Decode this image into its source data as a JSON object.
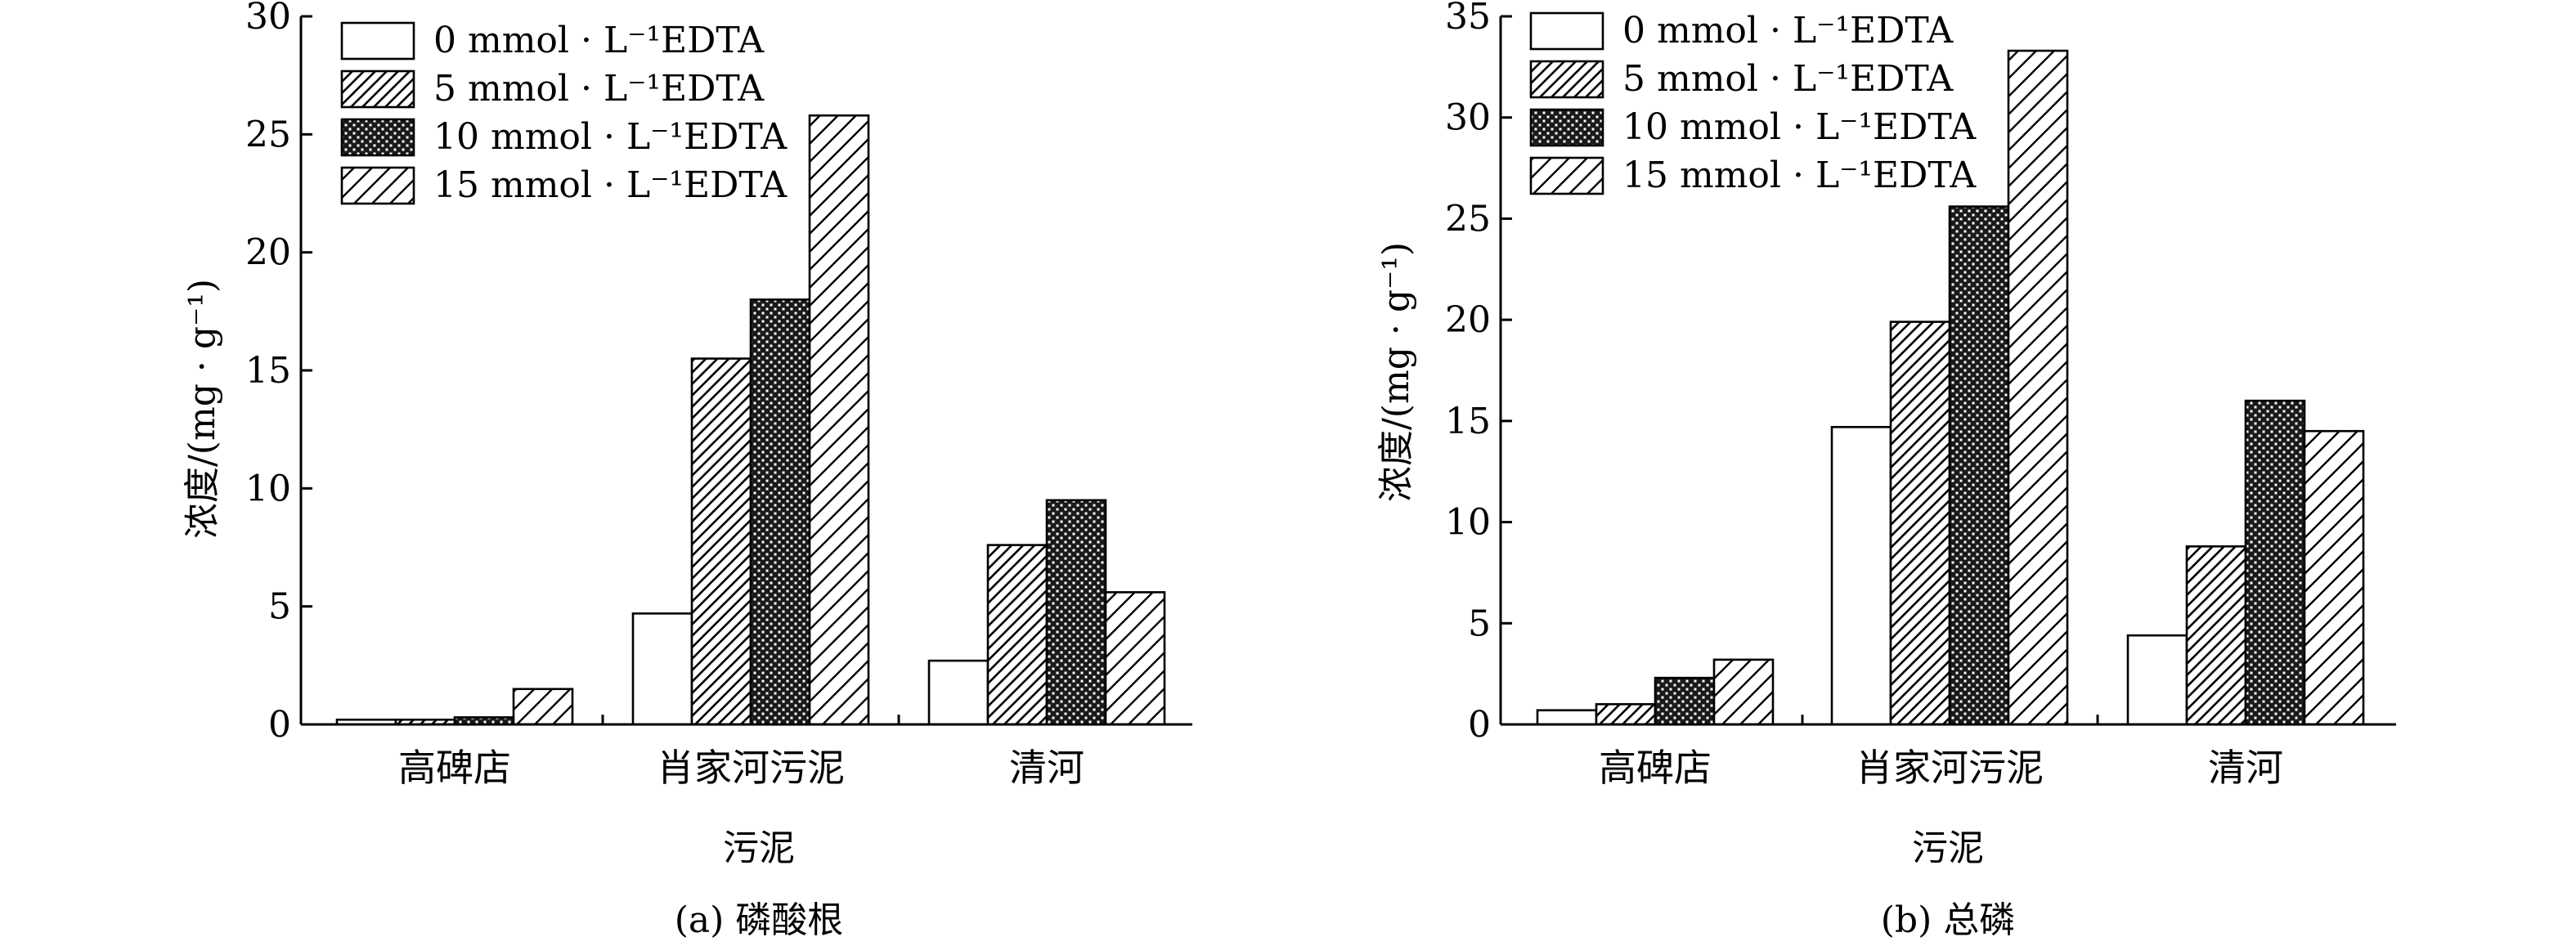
{
  "legend_entries": [
    {
      "pattern": "empty",
      "label": "0 mmol · L⁻¹EDTA"
    },
    {
      "pattern": "hatch-left",
      "label": "5 mmol · L⁻¹EDTA"
    },
    {
      "pattern": "dots",
      "label": "10 mmol · L⁻¹EDTA"
    },
    {
      "pattern": "hatch-right",
      "label": "15 mmol · L⁻¹EDTA"
    }
  ],
  "chart_data": [
    {
      "type": "bar",
      "caption": "(a) 磷酸根",
      "title": "",
      "xlabel": "污泥",
      "ylabel": "浓度/(mg · g⁻¹)",
      "ylim": [
        0,
        30
      ],
      "yticks": [
        0,
        5,
        10,
        15,
        20,
        25,
        30
      ],
      "categories": [
        "高碑店",
        "肖家河污泥",
        "清河"
      ],
      "series": [
        {
          "name": "0 mmol · L⁻¹EDTA",
          "values": [
            0.2,
            4.7,
            2.7
          ]
        },
        {
          "name": "5 mmol · L⁻¹EDTA",
          "values": [
            0.2,
            15.5,
            7.6
          ]
        },
        {
          "name": "10 mmol · L⁻¹EDTA",
          "values": [
            0.3,
            18.0,
            9.5
          ]
        },
        {
          "name": "15 mmol · L⁻¹EDTA",
          "values": [
            1.5,
            25.8,
            5.6
          ]
        }
      ],
      "legend": "top-left",
      "grid": false
    },
    {
      "type": "bar",
      "caption": "(b) 总磷",
      "title": "",
      "xlabel": "污泥",
      "ylabel": "浓度/(mg · g⁻¹)",
      "ylim": [
        0,
        35
      ],
      "yticks": [
        0,
        5,
        10,
        15,
        20,
        25,
        30,
        35
      ],
      "categories": [
        "高碑店",
        "肖家河污泥",
        "清河"
      ],
      "series": [
        {
          "name": "0 mmol · L⁻¹EDTA",
          "values": [
            0.7,
            14.7,
            4.4
          ]
        },
        {
          "name": "5 mmol · L⁻¹EDTA",
          "values": [
            1.0,
            19.9,
            8.8
          ]
        },
        {
          "name": "10 mmol · L⁻¹EDTA",
          "values": [
            2.3,
            25.6,
            16.0
          ]
        },
        {
          "name": "15 mmol · L⁻¹EDTA",
          "values": [
            3.2,
            33.3,
            14.5
          ]
        }
      ],
      "legend": "top-left",
      "grid": false
    }
  ]
}
